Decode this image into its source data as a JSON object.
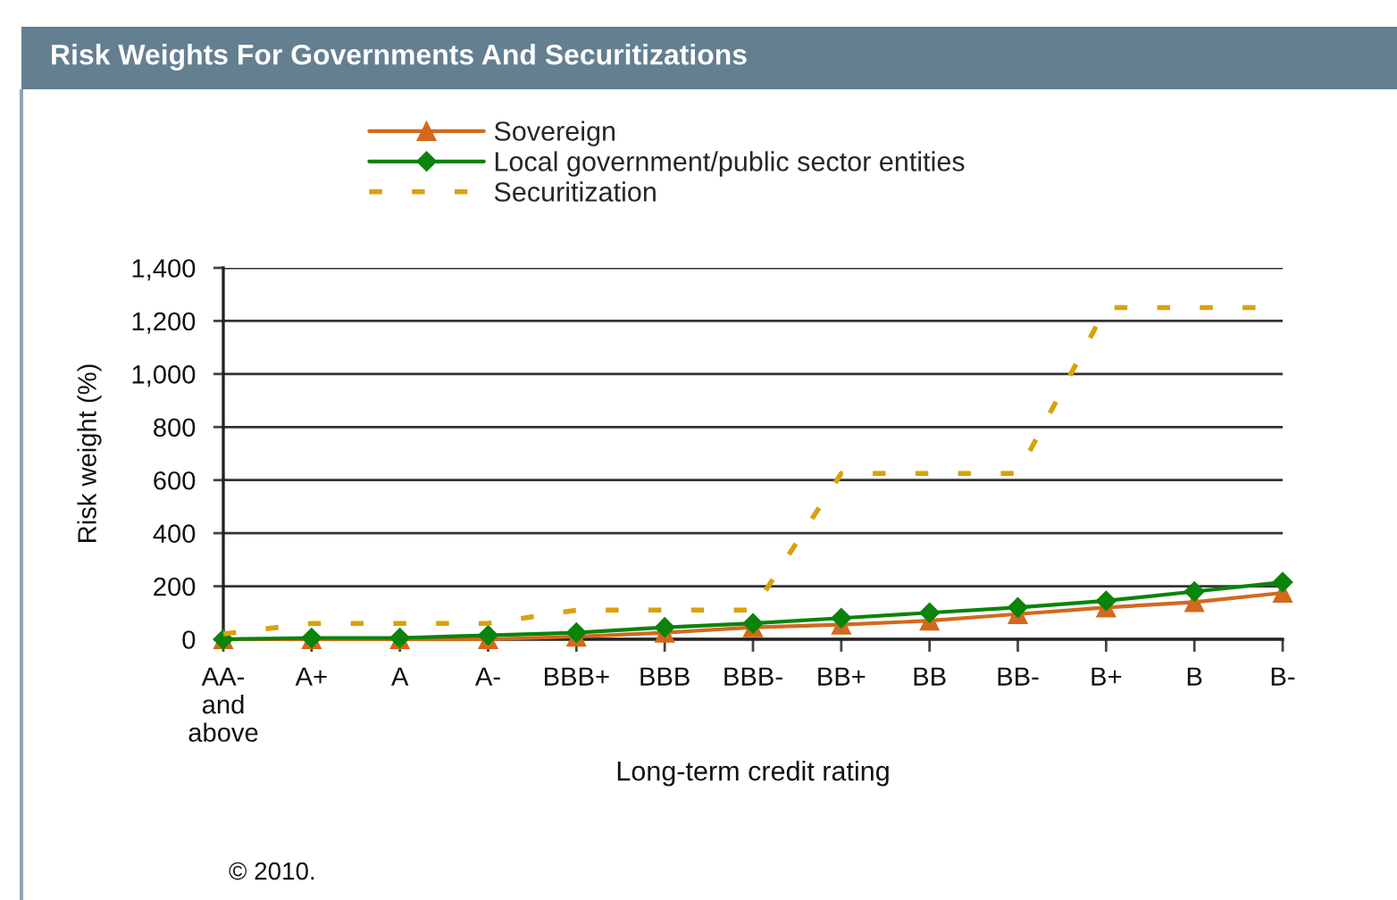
{
  "chart_data": {
    "type": "line",
    "title": "Risk Weights For Governments And Securitizations",
    "xlabel": "Long-term credit rating",
    "ylabel": "Risk weight (%)",
    "categories": [
      "AA-\nand\nabove",
      "A+",
      "A",
      "A-",
      "BBB+",
      "BBB",
      "BBB-",
      "BB+",
      "BB",
      "BB-",
      "B+",
      "B",
      "B-"
    ],
    "series": [
      {
        "name": "Sovereign",
        "color": "#d2691e",
        "marker": "triangle",
        "line_style": "solid",
        "values": [
          0,
          0,
          0,
          0,
          10,
          25,
          45,
          55,
          70,
          95,
          120,
          140,
          175
        ]
      },
      {
        "name": "Local government/public sector entities",
        "color": "#0a840a",
        "marker": "diamond",
        "line_style": "solid",
        "values": [
          0,
          5,
          5,
          15,
          25,
          45,
          60,
          80,
          100,
          120,
          145,
          180,
          215
        ]
      },
      {
        "name": "Securitization",
        "color": "#d9a20a",
        "marker": "none",
        "line_style": "dashed",
        "values": [
          20,
          60,
          60,
          60,
          110,
          110,
          110,
          625,
          625,
          625,
          1250,
          1250,
          1250
        ]
      }
    ],
    "ylim": [
      0,
      1400
    ],
    "yticks": [
      0,
      200,
      400,
      600,
      800,
      {
        "value": 1000,
        "label": "1,000"
      },
      {
        "value": 1200,
        "label": "1,200"
      },
      {
        "value": 1400,
        "label": "1,400"
      }
    ],
    "grid": "y",
    "legend": "top",
    "annotations": [
      "© 2010."
    ]
  }
}
